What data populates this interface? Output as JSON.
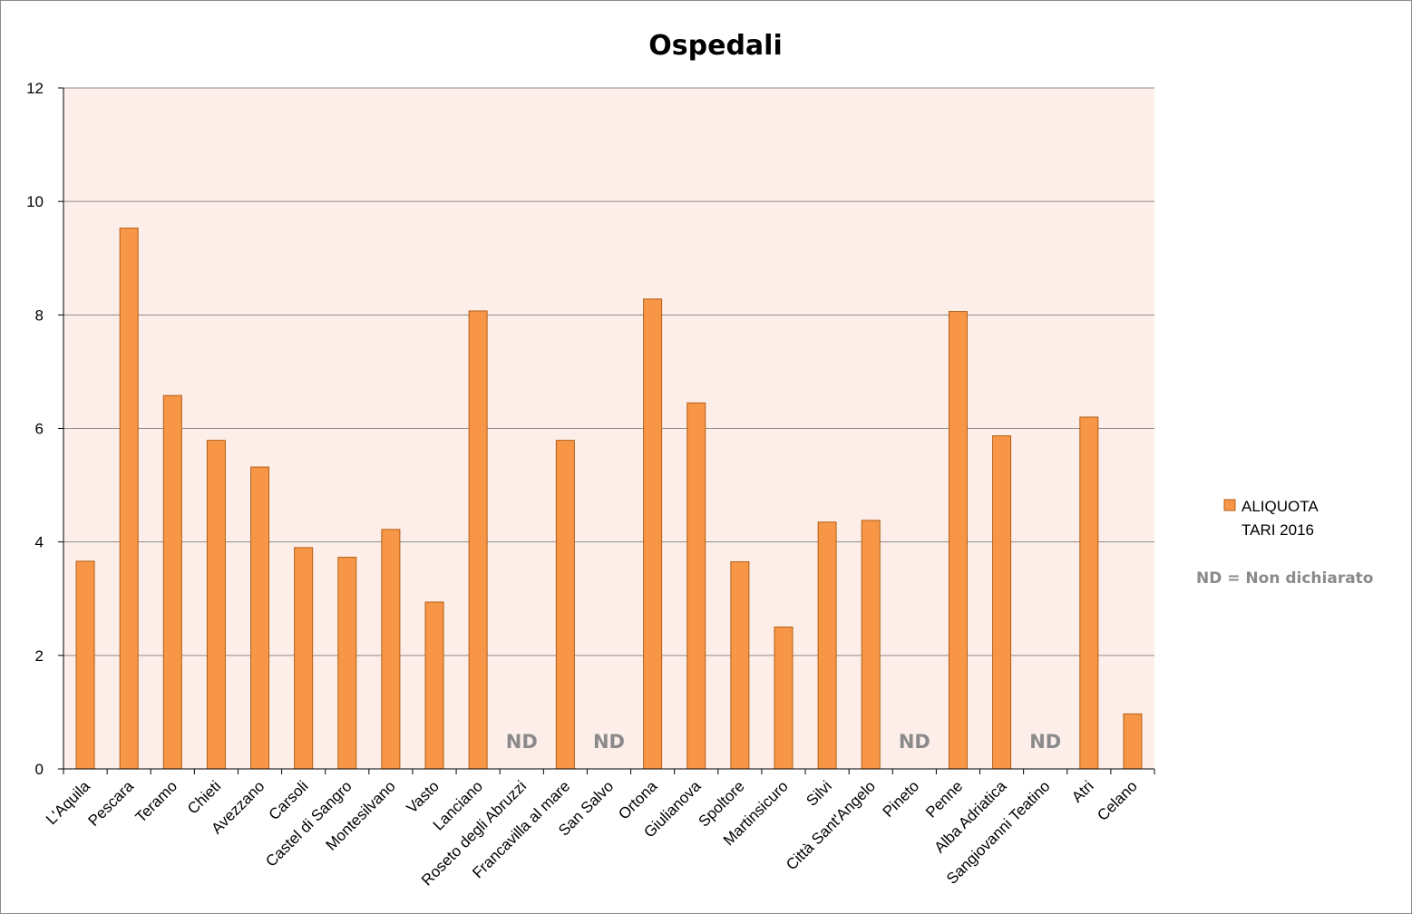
{
  "chart_data": {
    "type": "bar",
    "title": "Ospedali",
    "xlabel": "",
    "ylabel": "",
    "ylim": [
      0,
      12
    ],
    "yticks": [
      0,
      2,
      4,
      6,
      8,
      10,
      12
    ],
    "grid": true,
    "legend_position": "right",
    "categories": [
      "L'Aquila",
      "Pescara",
      "Teramo",
      "Chieti",
      "Avezzano",
      "Carsoli",
      "Castel di Sangro",
      "Montesilvano",
      "Vasto",
      "Lanciano",
      "Roseto degli Abruzzi",
      "Francavilla al mare",
      "San Salvo",
      "Ortona",
      "Giulianova",
      "Spoltore",
      "Martinsicuro",
      "Silvi",
      "Città Sant'Angelo",
      "Pineto",
      "Penne",
      "Alba Adriatica",
      "Sangiovanni Teatino",
      "Atri",
      "Celano"
    ],
    "series": [
      {
        "name": "ALIQUOTA TARI 2016",
        "color": "#f79646",
        "values": [
          3.66,
          9.53,
          6.58,
          5.79,
          5.32,
          3.9,
          3.73,
          4.22,
          2.94,
          8.07,
          null,
          5.79,
          null,
          8.28,
          6.45,
          3.65,
          2.5,
          4.35,
          4.38,
          null,
          8.06,
          5.87,
          null,
          6.2,
          0.97
        ]
      }
    ],
    "missing_label": "ND",
    "legend_lines": [
      "ALIQUOTA",
      "TARI 2016"
    ],
    "note": "ND = Non dichiarato",
    "plot_background": "#fdeeea",
    "bar_color": "#f79646",
    "bar_border": "#b35e14",
    "gridline_color": "#8c8c8c",
    "note_color": "#8a8a8a"
  }
}
